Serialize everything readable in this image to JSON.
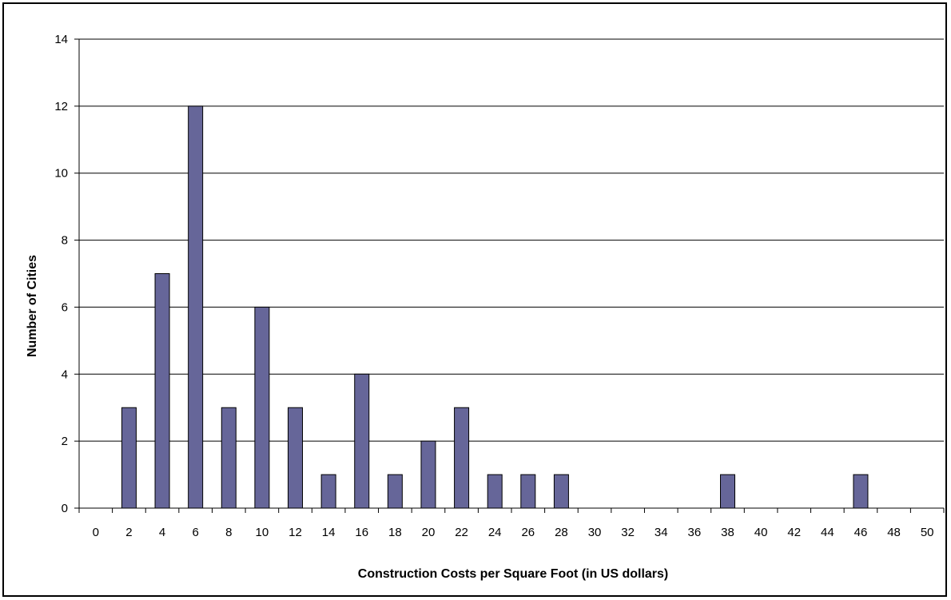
{
  "chart_data": {
    "type": "bar",
    "title": "",
    "xlabel": "Construction Costs per Square Foot (in US dollars)",
    "ylabel": "Number of Cities",
    "categories": [
      "0",
      "2",
      "4",
      "6",
      "8",
      "10",
      "12",
      "14",
      "16",
      "18",
      "20",
      "22",
      "24",
      "26",
      "28",
      "30",
      "32",
      "34",
      "36",
      "38",
      "40",
      "42",
      "44",
      "46",
      "48",
      "50"
    ],
    "values": [
      0,
      3,
      7,
      12,
      3,
      6,
      3,
      1,
      4,
      1,
      2,
      3,
      1,
      1,
      1,
      0,
      0,
      0,
      0,
      1,
      0,
      0,
      0,
      1,
      0,
      0
    ],
    "ylim": [
      0,
      14
    ],
    "yticks": [
      "0",
      "2",
      "4",
      "6",
      "8",
      "10",
      "12",
      "14"
    ],
    "grid": "horizontal",
    "legend": "none",
    "colors": {
      "bar_fill": "#666699",
      "bar_stroke": "#000000",
      "grid": "#000000",
      "background": "#ffffff"
    }
  }
}
